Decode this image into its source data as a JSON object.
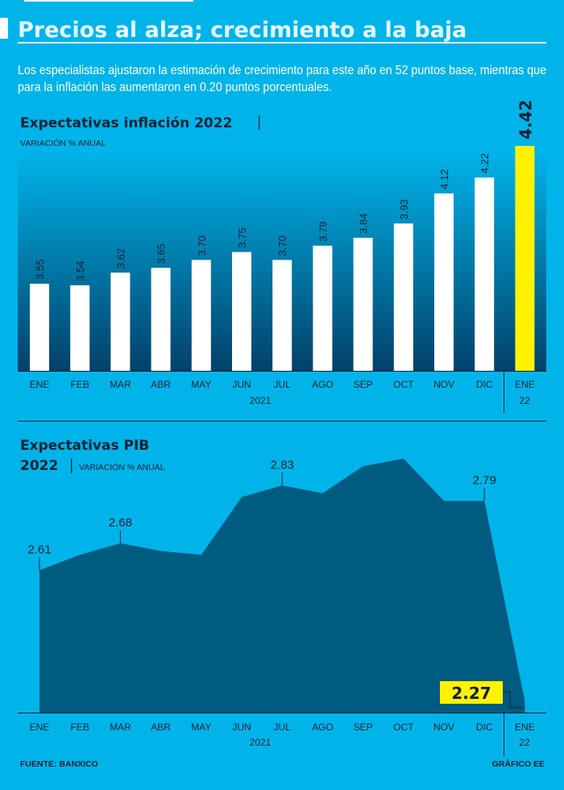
{
  "header": {
    "title": "Precios al alza; crecimiento a la baja",
    "subtitle_line1": "Los especialistas ajustaron la estimación de crecimiento para este año en 52 puntos base, mientras que",
    "subtitle_line2": "para la inflación las aumentaron en 0.20 puntos porcentuales."
  },
  "colors": {
    "background": "#00b4ea",
    "bars": "#ffffff",
    "highlight": "#fff200",
    "area": "#005b80",
    "text": "#0d2233"
  },
  "chart_data": [
    {
      "type": "bar",
      "title": "Expectativas inflación 2022",
      "ylabel": "VARIACIÓN % ANUAL",
      "categories": [
        "ENE",
        "FEB",
        "MAR",
        "ABR",
        "MAY",
        "JUN",
        "JUL",
        "AGO",
        "SEP",
        "OCT",
        "NOV",
        "DIC",
        "ENE"
      ],
      "year_labels": {
        "2021": "2021",
        "2022": "22"
      },
      "values": [
        3.55,
        3.54,
        3.62,
        3.65,
        3.7,
        3.75,
        3.7,
        3.79,
        3.84,
        3.93,
        4.12,
        4.22,
        4.42
      ],
      "labels": [
        "3.55",
        "3.54",
        "3.62",
        "3.65",
        "3.70",
        "3.75",
        "3.70",
        "3.79",
        "3.84",
        "3.93",
        "4.12",
        "4.22",
        "4.42"
      ],
      "highlight_index": 12,
      "ylim": [
        3.0,
        4.5
      ],
      "grid": false
    },
    {
      "type": "area",
      "title_line1": "Expectativas PIB",
      "title_line2": "2022",
      "ylabel": "VARIACIÓN % ANUAL",
      "categories": [
        "ENE",
        "FEB",
        "MAR",
        "ABR",
        "MAY",
        "JUN",
        "JUL",
        "AGO",
        "SEP",
        "OCT",
        "NOV",
        "DIC",
        "ENE"
      ],
      "year_labels": {
        "2021": "2021",
        "2022": "22"
      },
      "values": [
        2.61,
        2.65,
        2.68,
        2.66,
        2.65,
        2.8,
        2.83,
        2.81,
        2.88,
        2.9,
        2.79,
        2.79,
        2.27
      ],
      "labeled": {
        "0": "2.61",
        "2": "2.68",
        "6": "2.83",
        "11": "2.79",
        "12": "2.27"
      },
      "ylim": [
        2.24,
        2.95
      ],
      "grid": false
    }
  ],
  "footer": {
    "source": "FUENTE: BANXICO",
    "credit": "GRÁFICO EE"
  }
}
